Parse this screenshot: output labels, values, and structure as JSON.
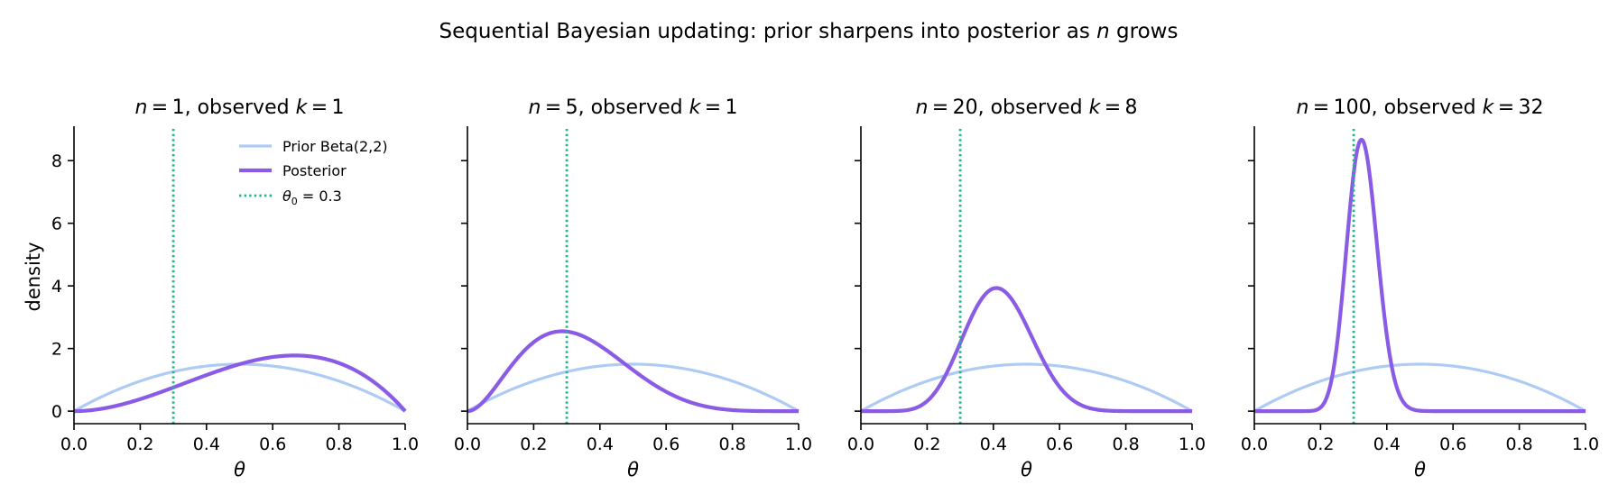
{
  "figure": {
    "suptitle": {
      "prefix": "Sequential Bayesian updating: prior sharpens into posterior as ",
      "var": "n",
      "suffix": " grows"
    }
  },
  "colors": {
    "prior": "#aecbf5",
    "posterior": "#8a5ce6",
    "theta0": "#1db88a"
  },
  "legend": {
    "placement": "upper-right of first panel",
    "prior_label": "Prior Beta(2,2)",
    "posterior_label": "Posterior",
    "theta0_label": {
      "sym": "θ",
      "sub": "0",
      "rest": " = 0.3"
    }
  },
  "chart_data": [
    {
      "type": "line",
      "title": {
        "n": "1",
        "k": "1"
      },
      "xlabel": "θ",
      "ylabel": "density",
      "xlim": [
        0,
        1
      ],
      "ylim": [
        -0.4,
        9.1
      ],
      "xticks": [
        "0.0",
        "0.2",
        "0.4",
        "0.6",
        "0.8",
        "1.0"
      ],
      "yticks": [
        "0",
        "2",
        "4",
        "6",
        "8"
      ],
      "grid": false,
      "prior": {
        "a": 2,
        "b": 2
      },
      "posterior": {
        "a": 3,
        "b": 2
      },
      "theta0": 0.3
    },
    {
      "type": "line",
      "title": {
        "n": "5",
        "k": "1"
      },
      "xlabel": "θ",
      "ylabel": "",
      "xlim": [
        0,
        1
      ],
      "ylim": [
        -0.4,
        9.1
      ],
      "xticks": [
        "0.0",
        "0.2",
        "0.4",
        "0.6",
        "0.8",
        "1.0"
      ],
      "yticks": [],
      "grid": false,
      "prior": {
        "a": 2,
        "b": 2
      },
      "posterior": {
        "a": 3,
        "b": 6
      },
      "theta0": 0.3
    },
    {
      "type": "line",
      "title": {
        "n": "20",
        "k": "8"
      },
      "xlabel": "θ",
      "ylabel": "",
      "xlim": [
        0,
        1
      ],
      "ylim": [
        -0.4,
        9.1
      ],
      "xticks": [
        "0.0",
        "0.2",
        "0.4",
        "0.6",
        "0.8",
        "1.0"
      ],
      "yticks": [],
      "grid": false,
      "prior": {
        "a": 2,
        "b": 2
      },
      "posterior": {
        "a": 10,
        "b": 14
      },
      "theta0": 0.3
    },
    {
      "type": "line",
      "title": {
        "n": "100",
        "k": "32"
      },
      "xlabel": "θ",
      "ylabel": "",
      "xlim": [
        0,
        1
      ],
      "ylim": [
        -0.4,
        9.1
      ],
      "xticks": [
        "0.0",
        "0.2",
        "0.4",
        "0.6",
        "0.8",
        "1.0"
      ],
      "yticks": [],
      "grid": false,
      "prior": {
        "a": 2,
        "b": 2
      },
      "posterior": {
        "a": 34,
        "b": 70
      },
      "theta0": 0.3
    }
  ]
}
